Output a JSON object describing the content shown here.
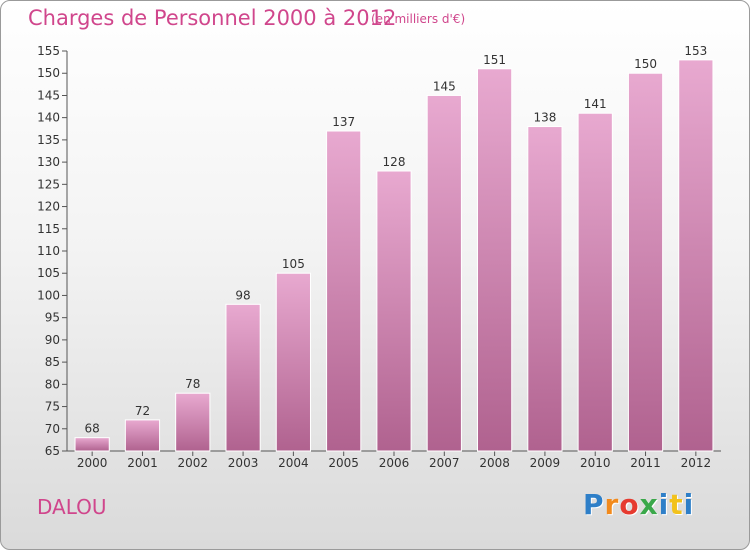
{
  "header": {
    "title": "Charges de Personnel 2000 à 2012",
    "unit": "(en milliers d'€)"
  },
  "footer": {
    "commune": "DALOU",
    "logo": "Proxiti",
    "logo_letters": [
      "P",
      "r",
      "o",
      "x",
      "i",
      "t",
      "i"
    ],
    "logo_colors": [
      "#2e7fc8",
      "#f28a1c",
      "#e63a2f",
      "#3aa84a",
      "#2e7fc8",
      "#f2c21c",
      "#2e7fc8"
    ]
  },
  "colors": {
    "bar_top": "#e8a9d0",
    "bar_bottom": "#b0628f",
    "bar_edge": "#ffffff",
    "text_accent": "#d0468c"
  },
  "chart_data": {
    "type": "bar",
    "title": "Charges de Personnel 2000 à 2012",
    "subtitle": "(en milliers d'€)",
    "categories": [
      "2000",
      "2001",
      "2002",
      "2003",
      "2004",
      "2005",
      "2006",
      "2007",
      "2008",
      "2009",
      "2010",
      "2011",
      "2012"
    ],
    "values": [
      68,
      72,
      78,
      98,
      105,
      137,
      128,
      145,
      151,
      138,
      141,
      150,
      153
    ],
    "ylim": [
      65,
      155
    ],
    "yticks": [
      65,
      70,
      75,
      80,
      85,
      90,
      95,
      100,
      105,
      110,
      115,
      120,
      125,
      130,
      135,
      140,
      145,
      150,
      155
    ],
    "grid": false,
    "legend": "none"
  }
}
